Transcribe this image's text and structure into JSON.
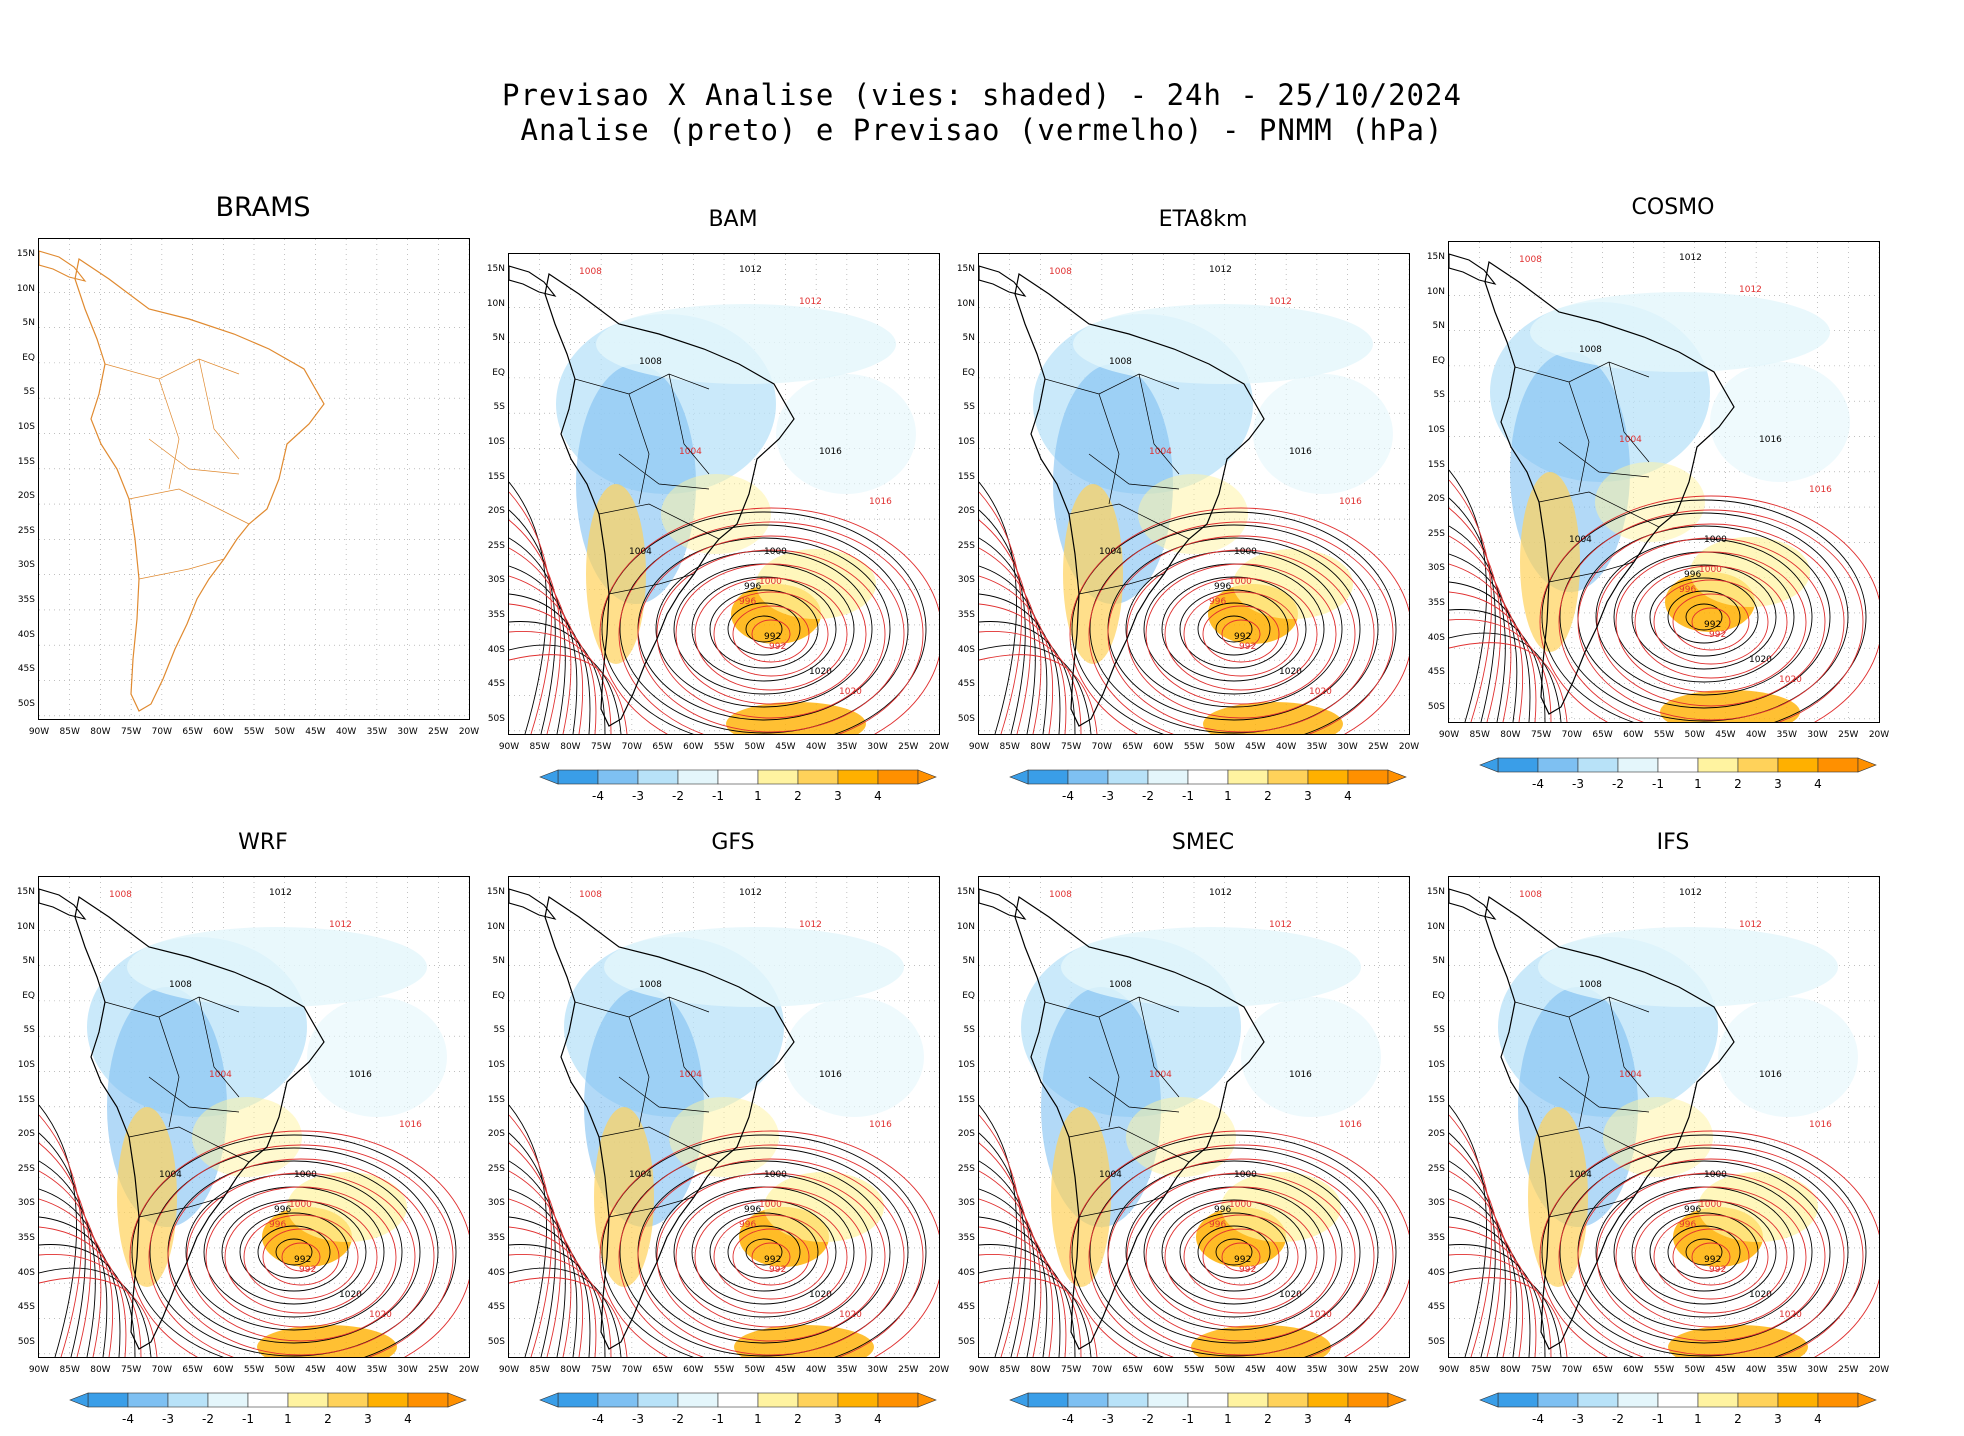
{
  "header": {
    "title_line1": "Previsao X Analise (vies: shaded) - 24h - 25/10/2024",
    "title_line2": "Analise (preto) e Previsao (vermelho) - PNMM (hPa)"
  },
  "axes": {
    "lat_labels": [
      "15N",
      "10N",
      "5N",
      "EQ",
      "5S",
      "10S",
      "15S",
      "20S",
      "25S",
      "30S",
      "35S",
      "40S",
      "45S",
      "50S"
    ],
    "lon_labels": [
      "90W",
      "85W",
      "80W",
      "75W",
      "70W",
      "65W",
      "60W",
      "55W",
      "50W",
      "45W",
      "40W",
      "35W",
      "30W",
      "25W",
      "20W"
    ]
  },
  "colorbar": {
    "labels": [
      "-4",
      "-3",
      "-2",
      "-1",
      "1",
      "2",
      "3",
      "4"
    ],
    "colors": [
      "#3a9ee8",
      "#7ec0f2",
      "#b8e2f8",
      "#e4f6fb",
      "#ffffff",
      "#fff3a0",
      "#ffd25a",
      "#ffb000",
      "#ff9000"
    ]
  },
  "contours": {
    "analysis_color": "#000000",
    "forecast_color": "#e03030",
    "labels_black": [
      "1012",
      "1008",
      "1004",
      "1000",
      "996",
      "992",
      "1016",
      "1020"
    ],
    "labels_red": [
      "1012",
      "1008",
      "1004",
      "1000",
      "996",
      "992",
      "1016",
      "1020"
    ]
  },
  "panels": [
    {
      "name": "BRAMS",
      "has_data": false,
      "has_colorbar": false
    },
    {
      "name": "BAM",
      "has_data": true,
      "has_colorbar": true
    },
    {
      "name": "ETA8km",
      "has_data": true,
      "has_colorbar": true
    },
    {
      "name": "COSMO",
      "has_data": true,
      "has_colorbar": true
    },
    {
      "name": "WRF",
      "has_data": true,
      "has_colorbar": true
    },
    {
      "name": "GFS",
      "has_data": true,
      "has_colorbar": true
    },
    {
      "name": "SMEC",
      "has_data": true,
      "has_colorbar": true
    },
    {
      "name": "IFS",
      "has_data": true,
      "has_colorbar": true
    }
  ]
}
